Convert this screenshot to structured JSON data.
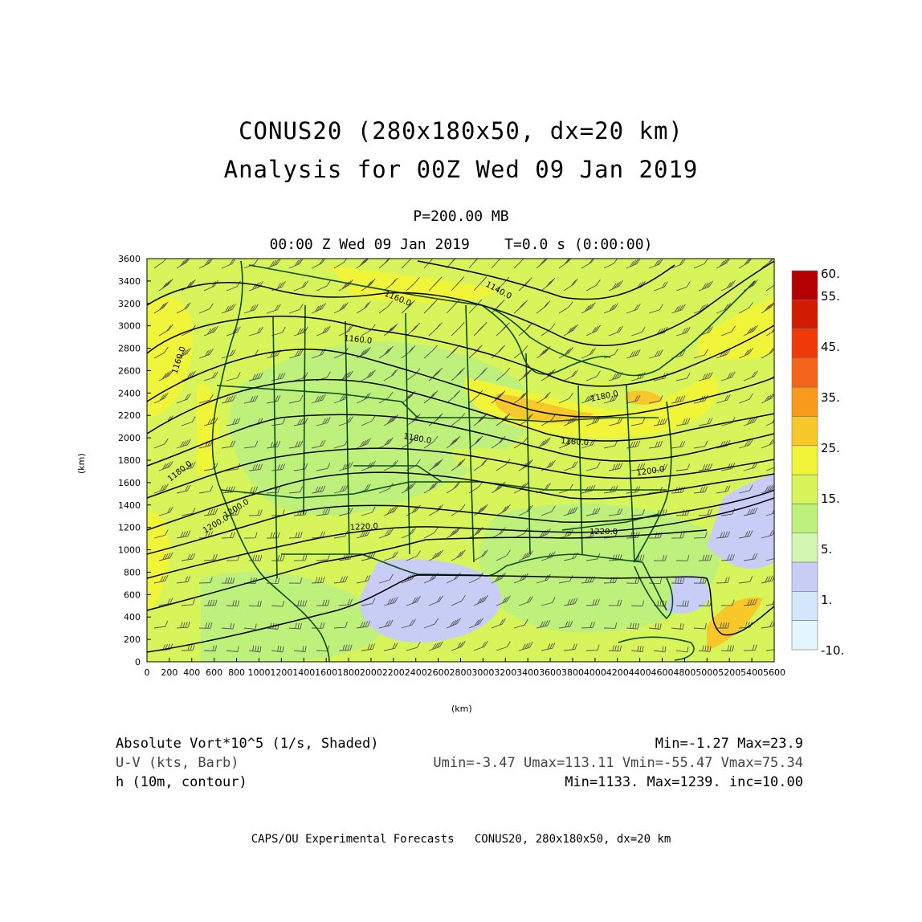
{
  "title": {
    "line1": "CONUS20 (280x180x50, dx=20 km)",
    "line2": "Analysis for 00Z Wed 09 Jan 2019"
  },
  "subtitle": {
    "level": "P=200.00 MB",
    "time": "00:00 Z Wed 09 Jan 2019    T=0.0 s (0:00:00)"
  },
  "axes": {
    "xlabel": "(km)",
    "ylabel": "(km)",
    "xticks": [
      "0",
      "200",
      "400",
      "600",
      "800",
      "1000",
      "1200",
      "1400",
      "1600",
      "1800",
      "2000",
      "2200",
      "2400",
      "2600",
      "2800",
      "3000",
      "3200",
      "3400",
      "3600",
      "3800",
      "4000",
      "4200",
      "4400",
      "4600",
      "4800",
      "5000",
      "5200",
      "5400",
      "5600"
    ],
    "yticks": [
      "0",
      "200",
      "400",
      "600",
      "800",
      "1000",
      "1200",
      "1400",
      "1600",
      "1800",
      "2000",
      "2200",
      "2400",
      "2600",
      "2800",
      "3000",
      "3200",
      "3400",
      "3600"
    ],
    "xrange": [
      0,
      5600
    ],
    "yrange": [
      0,
      3600
    ]
  },
  "colorbar": {
    "labels": [
      "60.",
      "55.",
      "45.",
      "35.",
      "25.",
      "15.",
      "5.",
      "1.",
      "-10."
    ],
    "colors": [
      "#b40000",
      "#d21c00",
      "#ee3a08",
      "#f4641a",
      "#f99a1c",
      "#f8c82a",
      "#f1f53a",
      "#d7f55a",
      "#bef07c",
      "#d2f7b0",
      "#c7cdf5",
      "#d2e6fc",
      "#e2f6fd"
    ]
  },
  "contour_labels": [
    {
      "text": "1140.0"
    },
    {
      "text": "1160.0"
    },
    {
      "text": "1160.0"
    },
    {
      "text": "1160.0"
    },
    {
      "text": "1180.0"
    },
    {
      "text": "1180.0"
    },
    {
      "text": "1180.0"
    },
    {
      "text": "1180.0"
    },
    {
      "text": "1200.0"
    },
    {
      "text": "1200.0"
    },
    {
      "text": "1200.0"
    },
    {
      "text": "1220.0"
    },
    {
      "text": "1220.0"
    }
  ],
  "legend": {
    "shaded_label": "Absolute Vort*10^5 (1/s, Shaded)",
    "shaded_range": "Min=-1.27 Max=23.9",
    "barb_label": "U-V (kts, Barb)",
    "barb_range": "Umin=-3.47 Umax=113.11 Vmin=-55.47 Vmax=75.34",
    "contour_label": "h (10m, contour)",
    "contour_range": "Min=1133. Max=1239. inc=10.00"
  },
  "caption": "CAPS/OU Experimental Forecasts   CONUS20, 280x180x50, dx=20 km"
}
